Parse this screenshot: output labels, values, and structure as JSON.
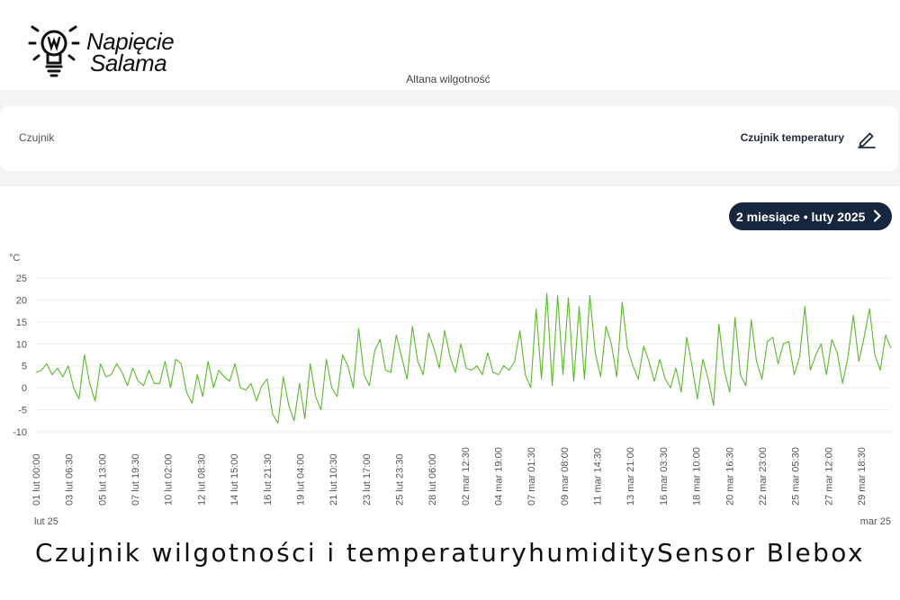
{
  "header": {
    "logo_line1": "Napięcie",
    "logo_line2": "Salama",
    "page_title": "Altana wilgotność"
  },
  "sensor_card": {
    "label": "Czujnik",
    "value": "Czujnik temperatury",
    "edit_icon": "pencil-icon"
  },
  "range_button": {
    "label": "2 miesiące • luty 2025",
    "icon": "chevron-right-icon"
  },
  "caption": "Czujnik wilgotności i temperaturyhumiditySensor Blebox",
  "colors": {
    "line": "#5db82e",
    "button_bg": "#17263f",
    "band_bg": "#f4f4f4"
  },
  "chart_data": {
    "type": "line",
    "ylabel": "°C",
    "ylim": [
      -10,
      25
    ],
    "yticks": [
      25,
      20,
      15,
      10,
      5,
      0,
      -5,
      -10
    ],
    "grid": true,
    "x_start_label": "lut 25",
    "x_end_label": "mar 25",
    "tick_labels": [
      "01 lut 00:00",
      "03 lut 06:30",
      "05 lut 13:00",
      "07 lut 19:30",
      "10 lut 02:00",
      "12 lut 08:30",
      "14 lut 15:00",
      "16 lut 21:30",
      "19 lut 04:00",
      "21 lut 10:30",
      "23 lut 17:00",
      "25 lut 23:30",
      "28 lut 06:00",
      "02 mar 12:30",
      "04 mar 19:00",
      "07 mar 01:30",
      "09 mar 08:00",
      "11 mar 14:30",
      "13 mar 21:00",
      "16 mar 03:30",
      "18 mar 10:00",
      "20 mar 16:30",
      "22 mar 23:00",
      "25 mar 05:30",
      "27 mar 12:00",
      "29 mar 18:30"
    ],
    "series": [
      {
        "color": "#5db82e",
        "x_start": "01 lut 00:00",
        "step_hours": 6.5,
        "values": [
          3.5,
          4,
          5.5,
          3,
          4.5,
          2.5,
          5,
          0,
          -2.5,
          7.5,
          1,
          -3,
          5.5,
          2.5,
          3,
          5.5,
          3.5,
          0.5,
          4.5,
          1.5,
          0.5,
          4,
          1,
          1,
          6,
          0,
          6.5,
          5.5,
          -1,
          -3.5,
          3,
          -2,
          6,
          0,
          4,
          2.5,
          1.5,
          5.5,
          0,
          -0.5,
          1,
          -3,
          0.5,
          2,
          -6,
          -8,
          2.5,
          -4,
          -7.5,
          1,
          -7,
          5.5,
          -2,
          -5,
          6.5,
          0,
          -2,
          7.5,
          5,
          0,
          13.5,
          3,
          0.5,
          8.5,
          11,
          4,
          3.5,
          12,
          7,
          2,
          14,
          6,
          3,
          12.5,
          9,
          4.5,
          13,
          7,
          3.5,
          10,
          4.5,
          4,
          5,
          3,
          8,
          3.5,
          3,
          5,
          4,
          6,
          13,
          3,
          0,
          18,
          2,
          21.5,
          0.5,
          21,
          3,
          20.5,
          1.5,
          18.5,
          2,
          21,
          8,
          2.5,
          14,
          10,
          2.5,
          19.5,
          9,
          5,
          2,
          9.5,
          6,
          1.5,
          6.5,
          2,
          0,
          4.5,
          -1,
          11.5,
          5,
          -2.5,
          6.5,
          2,
          -4,
          14.5,
          4,
          -1,
          16,
          3,
          0.5,
          15.5,
          6,
          2,
          10.5,
          11.5,
          5.5,
          10,
          10.5,
          3,
          7,
          18.5,
          4,
          7.5,
          10,
          3,
          11,
          8,
          1,
          7,
          16.5,
          6,
          11.5,
          18,
          7.5,
          4,
          12,
          9
        ]
      }
    ]
  }
}
